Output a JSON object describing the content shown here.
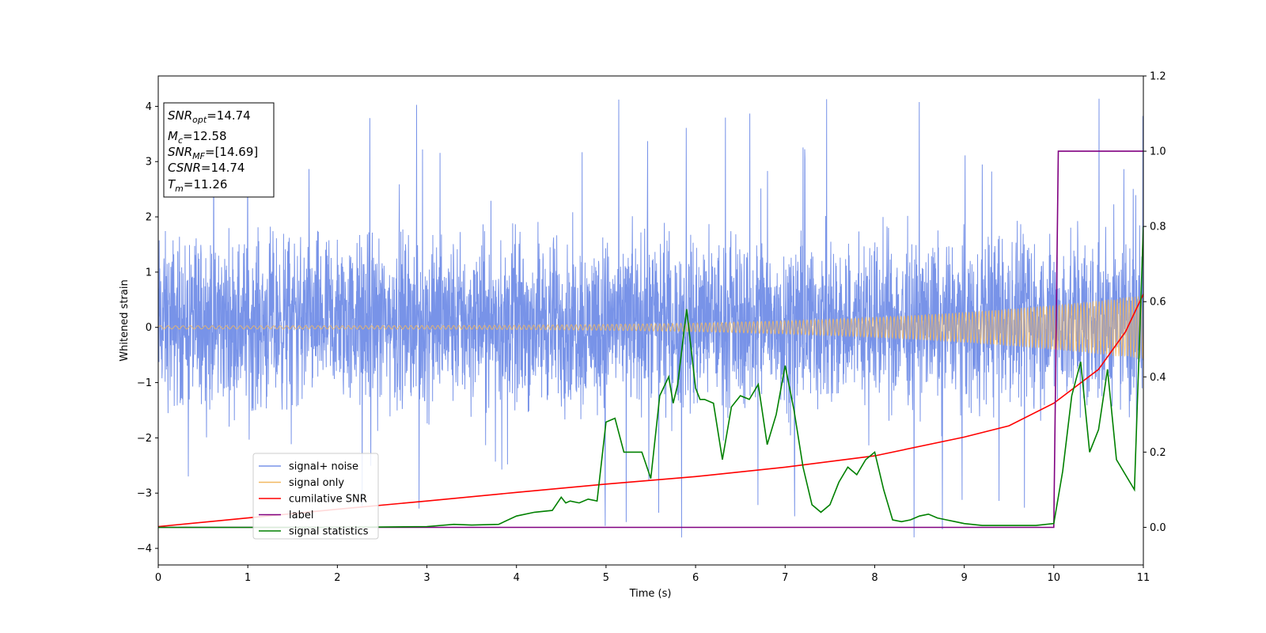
{
  "chart_data": {
    "type": "line",
    "xlabel": "Time (s)",
    "ylabel": "Whitened strain",
    "xlim": [
      0,
      11
    ],
    "ylim": [
      -4.3,
      4.55
    ],
    "y2lim": [
      -0.1,
      1.2
    ],
    "xticks": [
      "0",
      "1",
      "2",
      "3",
      "4",
      "5",
      "6",
      "7",
      "8",
      "9",
      "10",
      "11"
    ],
    "yticks": [
      "−4",
      "−3",
      "−2",
      "−1",
      "0",
      "1",
      "2",
      "3",
      "4"
    ],
    "y2ticks": [
      "0.0",
      "0.2",
      "0.4",
      "0.6",
      "0.8",
      "1.0",
      "1.2"
    ],
    "legend_position": "lower-left",
    "info_box": {
      "lines": [
        {
          "base": "SNR",
          "sub": "opt",
          "value": "=14.74"
        },
        {
          "base": "M",
          "sub": "c",
          "value": "=12.58"
        },
        {
          "base": "SNR",
          "sub": "MF",
          "value": "=[14.69]"
        },
        {
          "base": "CSNR",
          "sub": "",
          "value": "=14.74"
        },
        {
          "base": "T",
          "sub": "m",
          "value": "=11.26"
        }
      ]
    },
    "series": [
      {
        "name": "signal+ noise",
        "axis": "left",
        "color": "#7893e8",
        "kind": "noise",
        "amplitude_band": [
          -2.0,
          2.2
        ],
        "approx_extremes": {
          "max": 4.15,
          "min": -3.85
        }
      },
      {
        "name": "signal only",
        "axis": "left",
        "color": "#f2b860",
        "kind": "chirp",
        "amplitude_start": 0.03,
        "amplitude_end": 0.58,
        "cycles": 230
      },
      {
        "name": "cumilative SNR",
        "axis": "right",
        "color": "#ff0000",
        "x": [
          0,
          1,
          2,
          3,
          4,
          5,
          6,
          7,
          8,
          9,
          9.5,
          10,
          10.5,
          10.8,
          11
        ],
        "y": [
          0.002,
          0.025,
          0.048,
          0.07,
          0.093,
          0.115,
          0.135,
          0.16,
          0.19,
          0.24,
          0.27,
          0.33,
          0.42,
          0.52,
          0.62
        ]
      },
      {
        "name": "label",
        "axis": "right",
        "color": "#800080",
        "x": [
          0,
          10.0,
          10.05,
          11
        ],
        "y": [
          0.0,
          0.0,
          1.0,
          1.0
        ]
      },
      {
        "name": "signal statistics",
        "axis": "right",
        "color": "#008000",
        "x": [
          0,
          1,
          2,
          3,
          3.3,
          3.5,
          3.8,
          4.0,
          4.2,
          4.4,
          4.5,
          4.55,
          4.6,
          4.7,
          4.8,
          4.9,
          5.0,
          5.1,
          5.2,
          5.3,
          5.4,
          5.5,
          5.6,
          5.7,
          5.75,
          5.8,
          5.9,
          6.0,
          6.05,
          6.1,
          6.2,
          6.3,
          6.35,
          6.4,
          6.5,
          6.6,
          6.7,
          6.8,
          6.9,
          7.0,
          7.1,
          7.2,
          7.3,
          7.4,
          7.5,
          7.6,
          7.7,
          7.8,
          7.9,
          8.0,
          8.1,
          8.2,
          8.3,
          8.4,
          8.5,
          8.6,
          8.7,
          8.8,
          8.9,
          9.0,
          9.2,
          9.5,
          9.8,
          10.0,
          10.1,
          10.2,
          10.3,
          10.4,
          10.5,
          10.6,
          10.7,
          10.85,
          10.9,
          11.0
        ],
        "y": [
          0.0,
          0.0,
          0.0,
          0.002,
          0.008,
          0.006,
          0.008,
          0.03,
          0.04,
          0.045,
          0.08,
          0.065,
          0.07,
          0.065,
          0.075,
          0.07,
          0.28,
          0.29,
          0.2,
          0.2,
          0.2,
          0.13,
          0.35,
          0.4,
          0.33,
          0.38,
          0.58,
          0.37,
          0.34,
          0.34,
          0.33,
          0.18,
          0.25,
          0.32,
          0.35,
          0.34,
          0.38,
          0.22,
          0.3,
          0.43,
          0.31,
          0.16,
          0.06,
          0.04,
          0.06,
          0.12,
          0.16,
          0.14,
          0.18,
          0.2,
          0.1,
          0.02,
          0.015,
          0.02,
          0.03,
          0.035,
          0.025,
          0.02,
          0.015,
          0.01,
          0.005,
          0.005,
          0.005,
          0.01,
          0.15,
          0.35,
          0.44,
          0.2,
          0.26,
          0.42,
          0.18,
          0.12,
          0.1,
          0.8
        ]
      }
    ]
  }
}
